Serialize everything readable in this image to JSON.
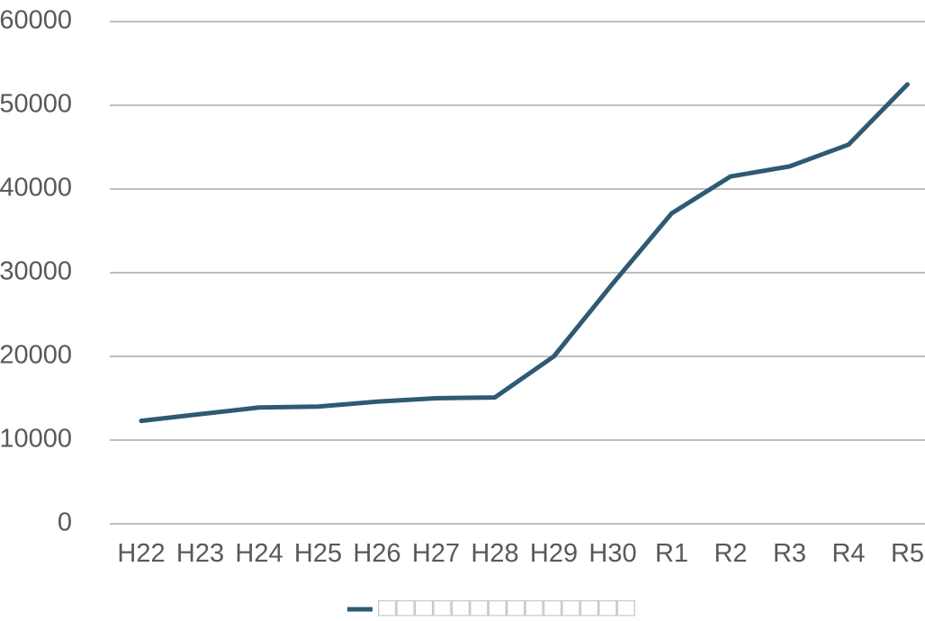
{
  "chart_data": {
    "type": "line",
    "categories": [
      "H22",
      "H23",
      "H24",
      "H25",
      "H26",
      "H27",
      "H28",
      "H29",
      "H30",
      "R1",
      "R2",
      "R3",
      "R4",
      "R5"
    ],
    "series": [
      {
        "name": "□□□□□□□□□□□□□□",
        "values": [
          12300,
          13100,
          13900,
          14000,
          14600,
          15000,
          15100,
          20000,
          28700,
          37100,
          41500,
          42700,
          45300,
          52500
        ]
      }
    ],
    "ylim": [
      0,
      60000
    ],
    "yticks": [
      0,
      10000,
      20000,
      30000,
      40000,
      50000,
      60000
    ],
    "grid": true,
    "legend": "bottom",
    "title": "",
    "xlabel": "",
    "ylabel": ""
  },
  "colors": {
    "series": "#2e5a73",
    "grid": "#bfbfbf",
    "tick_text": "#595959",
    "legend_text": "#c6c6c6"
  }
}
